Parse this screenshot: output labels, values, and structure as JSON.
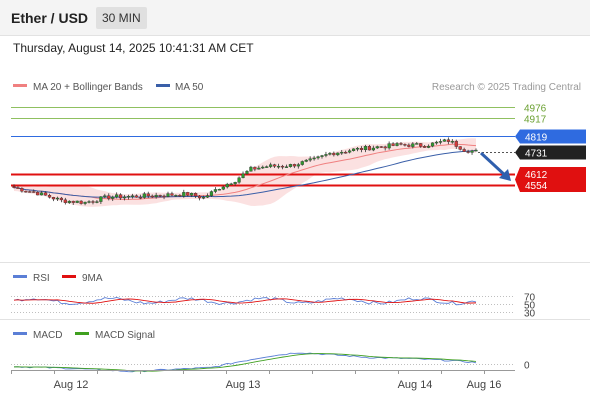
{
  "header": {
    "pair": "Ether / USD",
    "timeframe": "30 MIN"
  },
  "timestamp": "Thursday, August 14, 2025 10:41:31 AM CET",
  "legend": {
    "main": [
      {
        "label": "MA 20 + Bollinger Bands",
        "color": "#f08080"
      },
      {
        "label": "MA 50",
        "color": "#3a5fa8"
      }
    ],
    "copyright": "Research © 2025 Trading Central",
    "rsi": [
      {
        "label": "RSI",
        "color": "#5b7fd6"
      },
      {
        "label": "9MA",
        "color": "#e01010"
      }
    ],
    "macd": [
      {
        "label": "MACD",
        "color": "#5b7fd6"
      },
      {
        "label": "MACD Signal",
        "color": "#40a020"
      }
    ]
  },
  "chart_data": {
    "type": "candlestick",
    "price_range": [
      4180,
      5020
    ],
    "levels": [
      {
        "value": 4976,
        "label": "4976",
        "style": "thin-green",
        "color": "#8fc060"
      },
      {
        "value": 4917,
        "label": "4917",
        "style": "thin-green",
        "color": "#8fc060"
      },
      {
        "value": 4819,
        "label": "4819",
        "style": "blue-line",
        "color": "#2f6be0"
      },
      {
        "value": 4731,
        "label": "4731",
        "style": "current-price",
        "color": "#222222"
      },
      {
        "value": 4612,
        "label": "4612",
        "style": "red-bold",
        "color": "#e01010"
      },
      {
        "value": 4554,
        "label": "4554",
        "style": "red-bold",
        "color": "#e01010"
      }
    ],
    "x_ticks": [
      "Aug 12",
      "Aug 13",
      "Aug 14",
      "Aug 16"
    ],
    "rsi": {
      "levels": [
        70,
        50,
        30
      ]
    },
    "macd": {
      "levels": [
        0
      ]
    }
  }
}
